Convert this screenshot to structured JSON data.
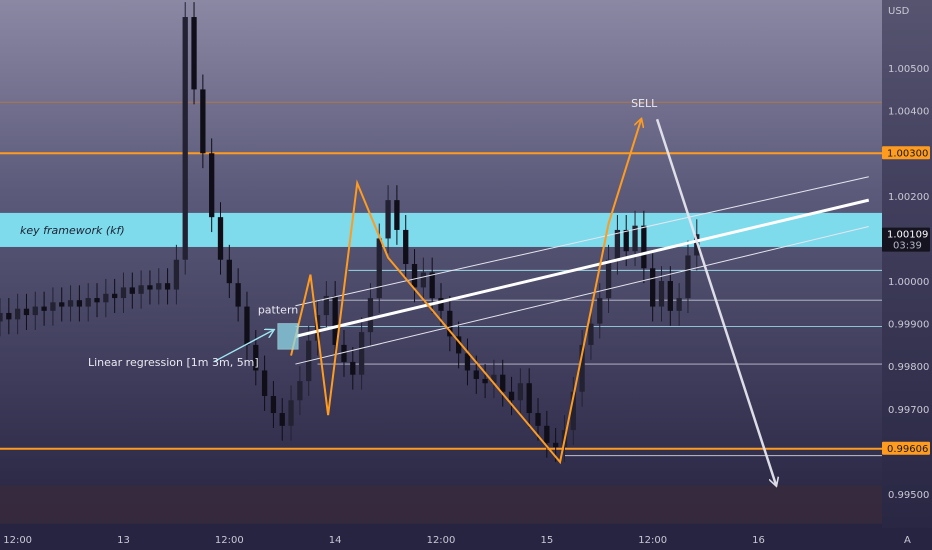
{
  "chart_data": {
    "type": "candlestick",
    "currency": "USD",
    "y_ticks": [
      "1.00500",
      "1.00400",
      "1.00200",
      "1.00000",
      "0.99900",
      "0.99800",
      "0.99700",
      "0.99500"
    ],
    "x_ticks": [
      {
        "label": "12:00",
        "x": 0
      },
      {
        "label": "13",
        "x": 12
      },
      {
        "label": "12:00",
        "x": 24
      },
      {
        "label": "14",
        "x": 36
      },
      {
        "label": "12:00",
        "x": 48
      },
      {
        "label": "15",
        "x": 60
      },
      {
        "label": "12:00",
        "x": 72
      },
      {
        "label": "16",
        "x": 84
      }
    ],
    "ylim": [
      0.9942,
      1.0066
    ],
    "xlim": [
      -2,
      98
    ],
    "price_tags": {
      "resistance": {
        "label": "1.00300",
        "value": 1.003,
        "color": "#ff9b1f"
      },
      "current": {
        "label": "1.00109",
        "sub": "03:39",
        "value": 1.00109,
        "bg": "#14131f"
      },
      "support": {
        "label": "0.99606",
        "value": 0.99606,
        "color": "#ff9b1f"
      }
    },
    "key_levels": [
      {
        "name": "resistance",
        "value": 1.003,
        "color": "#ff9b1f"
      },
      {
        "name": "upper-thin",
        "value": 1.0042,
        "color": "#c97a2a"
      },
      {
        "name": "support",
        "value": 0.99606,
        "color": "#ff9b1f"
      }
    ],
    "key_framework_zone": {
      "label": "key framework (kf)",
      "low": 1.0008,
      "high": 1.0016,
      "color": "#7fe3f2"
    },
    "bottom_zone": {
      "low": 0.9943,
      "high": 0.9952,
      "color": "#3a2a3c"
    },
    "horizontal_refs": [
      {
        "value": 1.00025,
        "x_start": 37.5,
        "color": "#9fe6f3"
      },
      {
        "value": 0.99955,
        "x_start": 34.5,
        "color": "#d0d0dc"
      },
      {
        "value": 0.99893,
        "x_start": 31.5,
        "color": "#9fe6f3"
      },
      {
        "value": 0.99805,
        "x_start": 34,
        "color": "#d0d0dc"
      },
      {
        "value": 0.9959,
        "x_start": 62,
        "color": "#d0d0dc"
      }
    ],
    "regression_channel": {
      "mid": [
        [
          31.5,
          0.9987
        ],
        [
          96.5,
          1.0019
        ]
      ],
      "upper": [
        [
          31.5,
          0.99942
        ],
        [
          96.5,
          1.00245
        ]
      ],
      "lower": [
        [
          31.5,
          0.99805
        ],
        [
          96.5,
          1.00128
        ]
      ]
    },
    "zigzag_pattern": [
      [
        31,
        0.99825
      ],
      [
        33.2,
        1.00015
      ],
      [
        35.2,
        0.99685
      ],
      [
        38.5,
        1.0023
      ],
      [
        42,
        1.00055
      ],
      [
        61.5,
        0.99575
      ],
      [
        67,
        1.00135
      ],
      [
        70.7,
        1.0038
      ]
    ],
    "sell_arrow": {
      "label": "SELL",
      "from": [
        72.5,
        1.0038
      ],
      "to": [
        86,
        0.9952
      ]
    },
    "pattern_marker": {
      "label": "pattern",
      "x0": 29.5,
      "x1": 31.8,
      "y0": 0.9984,
      "y1": 0.999
    },
    "regression_label": {
      "label": "Linear regression [1m 3m, 5m]",
      "arrow_from": [
        12,
        0.9981
      ],
      "arrow_to": [
        29,
        0.99885
      ]
    },
    "candles": [
      [
        -2,
        0.99905,
        0.99925
      ],
      [
        -1,
        0.99925,
        0.9991
      ],
      [
        0,
        0.9991,
        0.99935
      ],
      [
        1,
        0.99935,
        0.9992
      ],
      [
        2,
        0.9992,
        0.9994
      ],
      [
        3,
        0.9994,
        0.9993
      ],
      [
        4,
        0.9993,
        0.9995
      ],
      [
        5,
        0.9995,
        0.9994
      ],
      [
        6,
        0.9994,
        0.99955
      ],
      [
        7,
        0.99955,
        0.9994
      ],
      [
        8,
        0.9994,
        0.9996
      ],
      [
        9,
        0.9996,
        0.9995
      ],
      [
        10,
        0.9995,
        0.9997
      ],
      [
        11,
        0.9997,
        0.9996
      ],
      [
        12,
        0.9996,
        0.99985
      ],
      [
        13,
        0.99985,
        0.9997
      ],
      [
        14,
        0.9997,
        0.9999
      ],
      [
        15,
        0.9999,
        0.9998
      ],
      [
        16,
        0.9998,
        0.99995
      ],
      [
        17,
        0.99995,
        0.9998
      ],
      [
        18,
        0.9998,
        1.0005
      ],
      [
        19,
        1.0005,
        1.0062
      ],
      [
        20,
        1.0062,
        1.0045
      ],
      [
        21,
        1.0045,
        1.003
      ],
      [
        22,
        1.003,
        1.0015
      ],
      [
        23,
        1.0015,
        1.0005
      ],
      [
        24,
        1.0005,
        0.99995
      ],
      [
        25,
        0.99995,
        0.9994
      ],
      [
        26,
        0.9994,
        0.9985
      ],
      [
        27,
        0.9985,
        0.9979
      ],
      [
        28,
        0.9979,
        0.9973
      ],
      [
        29,
        0.9973,
        0.9969
      ],
      [
        30,
        0.9969,
        0.9966
      ],
      [
        31,
        0.9966,
        0.9972
      ],
      [
        32,
        0.9972,
        0.99765
      ],
      [
        33,
        0.99765,
        0.9986
      ],
      [
        34,
        0.9986,
        0.9992
      ],
      [
        35,
        0.9992,
        0.99965
      ],
      [
        36,
        0.99965,
        0.9985
      ],
      [
        37,
        0.9985,
        0.9981
      ],
      [
        38,
        0.9981,
        0.9978
      ],
      [
        39,
        0.9978,
        0.9988
      ],
      [
        40,
        0.9988,
        0.9996
      ],
      [
        41,
        0.9996,
        1.001
      ],
      [
        42,
        1.001,
        1.0019
      ],
      [
        43,
        1.0019,
        1.0012
      ],
      [
        44,
        1.0012,
        1.0004
      ],
      [
        45,
        1.0004,
        0.99985
      ],
      [
        46,
        0.99985,
        1.0002
      ],
      [
        47,
        1.0002,
        0.9996
      ],
      [
        48,
        0.9996,
        0.9993
      ],
      [
        49,
        0.9993,
        0.9987
      ],
      [
        50,
        0.9987,
        0.9983
      ],
      [
        51,
        0.9983,
        0.9979
      ],
      [
        52,
        0.9979,
        0.9977
      ],
      [
        53,
        0.9977,
        0.9976
      ],
      [
        54,
        0.9976,
        0.9978
      ],
      [
        55,
        0.9978,
        0.9974
      ],
      [
        56,
        0.9974,
        0.9972
      ],
      [
        57,
        0.9972,
        0.9976
      ],
      [
        58,
        0.9976,
        0.9969
      ],
      [
        59,
        0.9969,
        0.9966
      ],
      [
        60,
        0.9966,
        0.9962
      ],
      [
        61,
        0.9962,
        0.9961
      ],
      [
        62,
        0.9961,
        0.9965
      ],
      [
        63,
        0.9965,
        0.9974
      ],
      [
        64,
        0.9974,
        0.9985
      ],
      [
        65,
        0.9985,
        0.999
      ],
      [
        66,
        0.999,
        0.9996
      ],
      [
        67,
        0.9996,
        1.0005
      ],
      [
        68,
        1.0005,
        1.0012
      ],
      [
        69,
        1.0012,
        1.0007
      ],
      [
        70,
        1.0007,
        1.0013
      ],
      [
        71,
        1.0013,
        1.0003
      ],
      [
        72,
        1.0003,
        0.9994
      ],
      [
        73,
        0.9994,
        1.0
      ],
      [
        74,
        1.0,
        0.9993
      ],
      [
        75,
        0.9993,
        0.9996
      ],
      [
        76,
        0.9996,
        1.0006
      ],
      [
        77,
        1.0006,
        1.0011
      ]
    ],
    "up_color": "#232233",
    "down_color": "#0f0e19"
  }
}
